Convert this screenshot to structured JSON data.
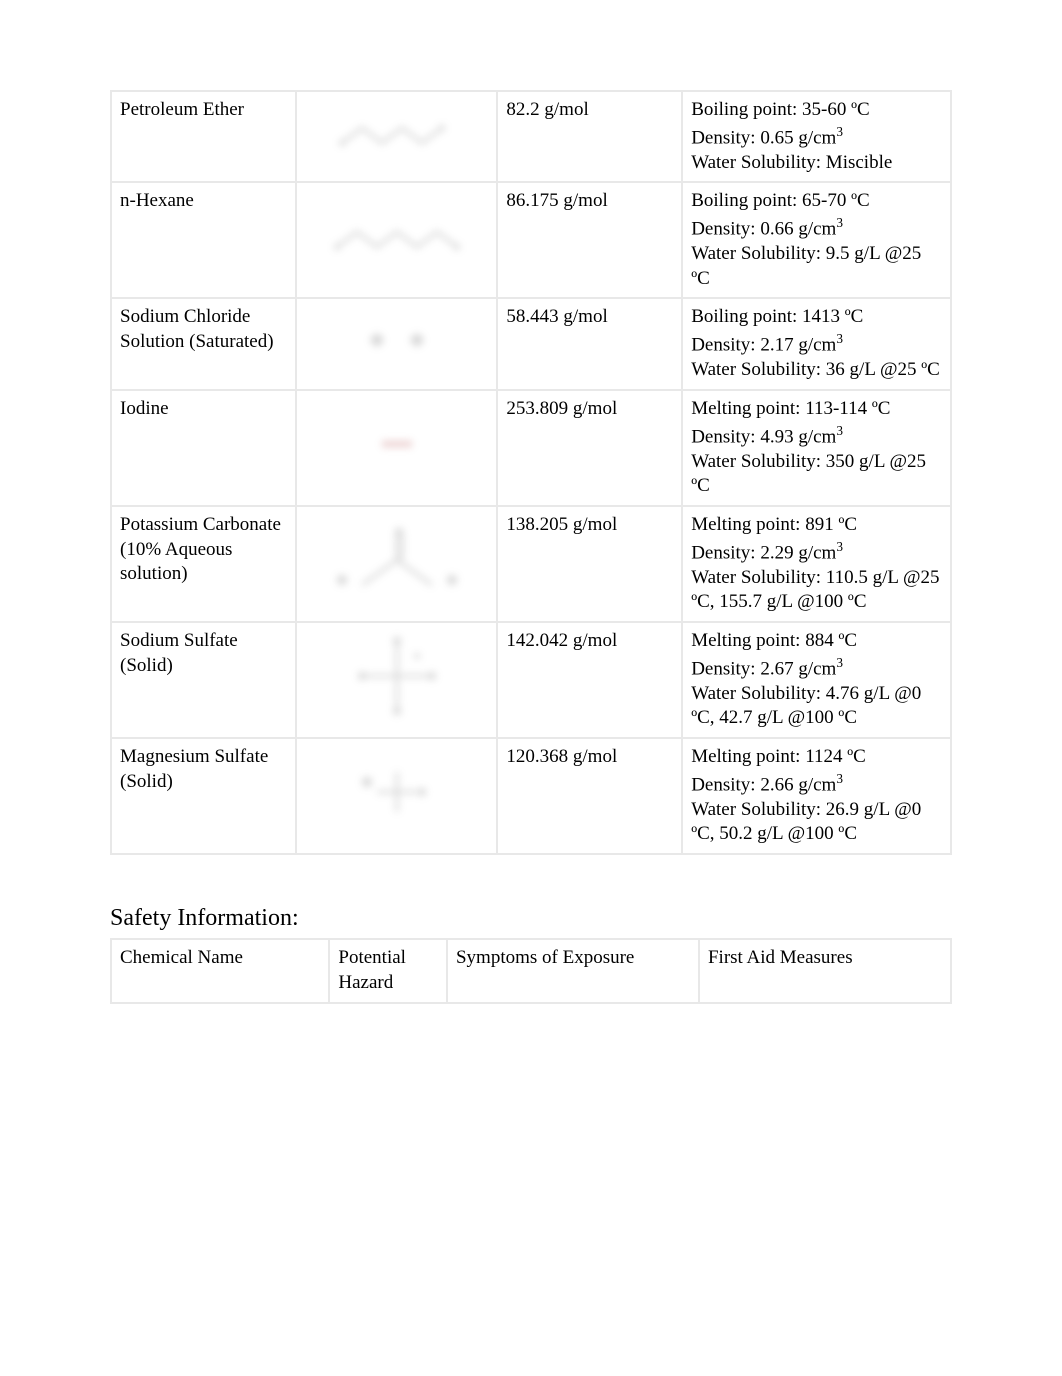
{
  "chemical_table": {
    "rows": [
      {
        "name": "Petroleum Ether",
        "structure_label": "petroleum-ether-structure",
        "molar_mass": "82.2 g/mol",
        "properties": "Boiling point: 35-60 ºC\nDensity: 0.65 g/cm³\nWater Solubility: Miscible"
      },
      {
        "name": "n-Hexane",
        "structure_label": "n-hexane-structure",
        "molar_mass": "86.175 g/mol",
        "properties": "Boiling point: 65-70 ºC\nDensity: 0.66 g/cm³\nWater Solubility: 9.5 g/L @25 ºC"
      },
      {
        "name": "Sodium Chloride Solution (Saturated)",
        "structure_label": "sodium-chloride-structure",
        "molar_mass": "58.443 g/mol",
        "properties": "Boiling point: 1413 ºC\nDensity: 2.17 g/cm³\nWater Solubility: 36 g/L @25 ºC"
      },
      {
        "name": "Iodine",
        "structure_label": "iodine-structure",
        "molar_mass": "253.809 g/mol",
        "properties": "Melting point: 113-114 ºC\nDensity: 4.93 g/cm³\nWater Solubility: 350 g/L @25 ºC"
      },
      {
        "name": "Potassium Carbonate (10% Aqueous solution)",
        "structure_label": "potassium-carbonate-structure",
        "molar_mass": "138.205 g/mol",
        "properties": "Melting point: 891 ºC\nDensity: 2.29 g/cm³\nWater Solubility: 110.5 g/L @25 ºC, 155.7 g/L @100 ºC"
      },
      {
        "name": "Sodium Sulfate (Solid)",
        "structure_label": "sodium-sulfate-structure",
        "molar_mass": "142.042 g/mol",
        "properties": "Melting point: 884 ºC\nDensity: 2.67 g/cm³\nWater Solubility: 4.76 g/L @0 ºC, 42.7 g/L @100 ºC"
      },
      {
        "name": "Magnesium Sulfate (Solid)",
        "structure_label": "magnesium-sulfate-structure",
        "molar_mass": "120.368 g/mol",
        "properties": "Melting point: 1124 ºC\nDensity: 2.66 g/cm³\nWater Solubility: 26.9 g/L @0 ºC, 50.2 g/L @100 ºC"
      }
    ]
  },
  "safety_section": {
    "heading": "Safety Information:",
    "headers": {
      "col1": "Chemical Name",
      "col2": "Potential Hazard",
      "col3": "Symptoms of Exposure",
      "col4": "First Aid Measures"
    }
  },
  "colors": {
    "border": "#e8e8e8",
    "text": "#000000",
    "background": "#ffffff"
  }
}
